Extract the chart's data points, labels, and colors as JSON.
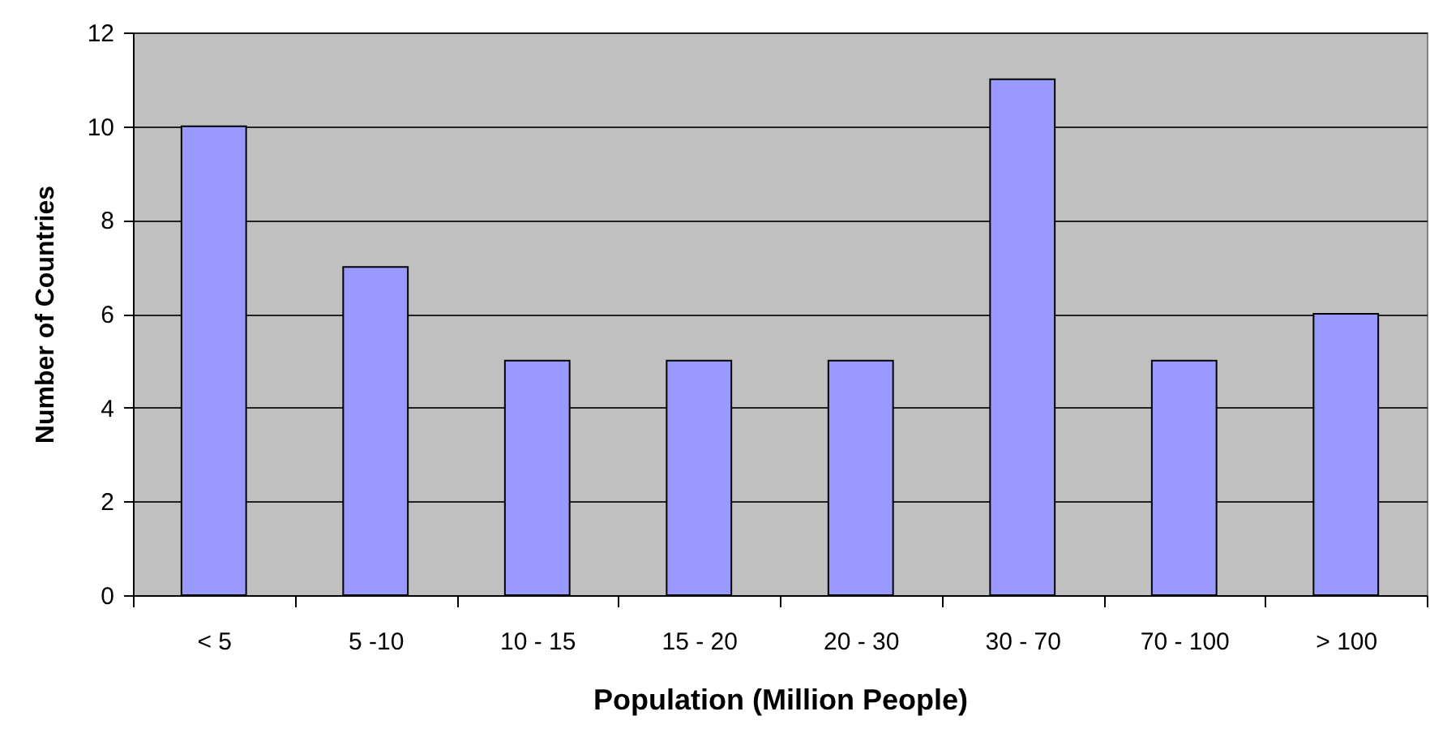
{
  "chart_data": {
    "type": "bar",
    "xlabel": "Population (Million People)",
    "ylabel": "Number of Countries",
    "categories": [
      "< 5",
      "5 -10",
      "10 - 15",
      "15 - 20",
      "20 - 30",
      "30 - 70",
      "70 - 100",
      "> 100"
    ],
    "values": [
      10,
      7,
      5,
      5,
      5,
      11,
      5,
      6
    ],
    "color": "#9999ff",
    "ylim": [
      0,
      12
    ],
    "yticks": [
      0,
      2,
      4,
      6,
      8,
      10,
      12
    ],
    "grid": "y"
  }
}
